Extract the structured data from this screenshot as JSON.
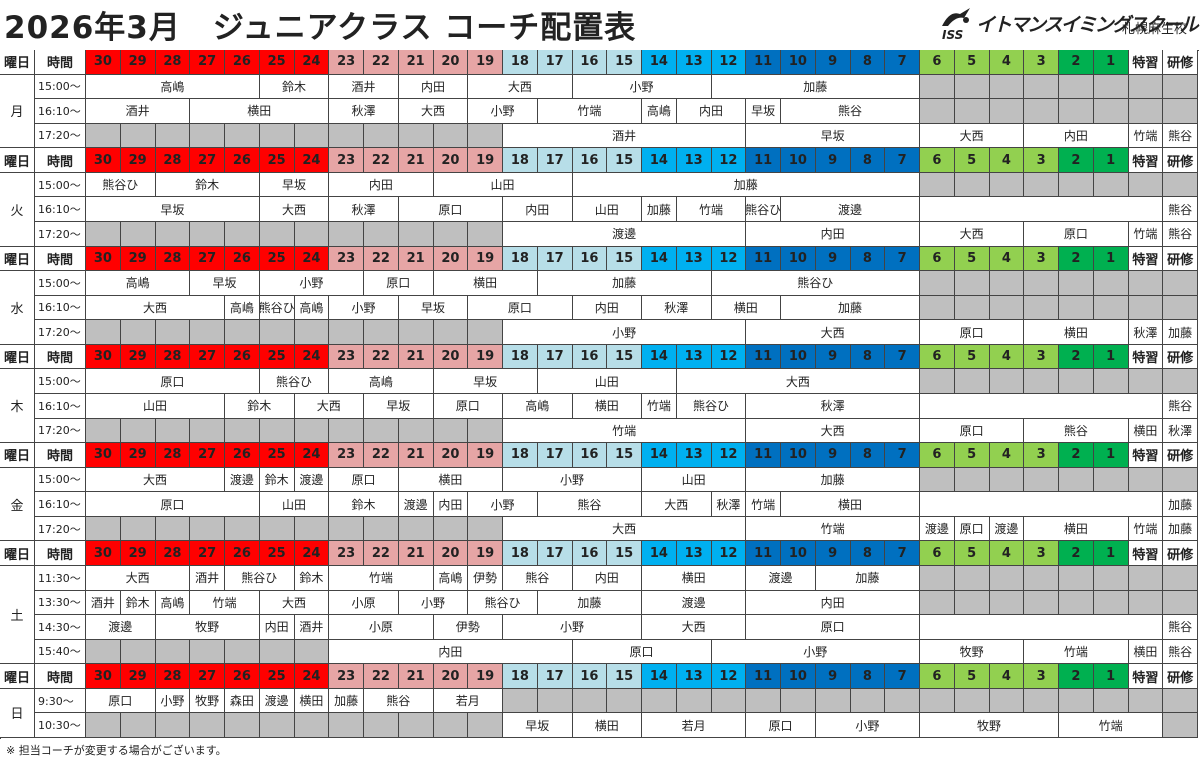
{
  "title": "2026年3月　ジュニアクラス コーチ配置表",
  "logo": {
    "mark": "ISS",
    "name": "イトマンスイミングスクール",
    "branch": "札幌麻生校"
  },
  "header": {
    "day": "曜日",
    "time": "時間",
    "levels": [
      "30",
      "29",
      "28",
      "27",
      "26",
      "25",
      "24",
      "23",
      "22",
      "21",
      "20",
      "19",
      "18",
      "17",
      "16",
      "15",
      "14",
      "13",
      "12",
      "11",
      "10",
      "9",
      "8",
      "7",
      "6",
      "5",
      "4",
      "3",
      "2",
      "1"
    ],
    "special": [
      "特習",
      "研修"
    ]
  },
  "days": [
    {
      "day": "月",
      "slots": [
        {
          "time": "15:00～",
          "coaches": [
            "高嶋",
            "鈴木",
            "酒井",
            "内田",
            "大西",
            "小野",
            "加藤"
          ]
        },
        {
          "time": "16:10～",
          "coaches": [
            "酒井",
            "横田",
            "秋澤",
            "大西",
            "小野",
            "竹端",
            "高嶋",
            "内田",
            "早坂",
            "熊谷"
          ]
        },
        {
          "time": "17:20～",
          "coaches": [
            "酒井",
            "早坂",
            "大西",
            "内田",
            "竹端",
            "熊谷"
          ]
        }
      ]
    },
    {
      "day": "火",
      "slots": [
        {
          "time": "15:00～",
          "coaches": [
            "熊谷ひ",
            "鈴木",
            "早坂",
            "内田",
            "山田",
            "加藤"
          ]
        },
        {
          "time": "16:10～",
          "coaches": [
            "早坂",
            "大西",
            "秋澤",
            "原口",
            "内田",
            "山田",
            "加藤",
            "竹端",
            "熊谷ひ",
            "渡邊",
            "熊谷"
          ]
        },
        {
          "time": "17:20～",
          "coaches": [
            "渡邊",
            "内田",
            "大西",
            "原口",
            "竹端",
            "熊谷"
          ]
        }
      ]
    },
    {
      "day": "水",
      "slots": [
        {
          "time": "15:00～",
          "coaches": [
            "高嶋",
            "早坂",
            "小野",
            "原口",
            "横田",
            "加藤",
            "熊谷ひ"
          ]
        },
        {
          "time": "16:10～",
          "coaches": [
            "大西",
            "高嶋",
            "熊谷ひ",
            "高嶋",
            "小野",
            "早坂",
            "原口",
            "内田",
            "秋澤",
            "横田",
            "加藤"
          ]
        },
        {
          "time": "17:20～",
          "coaches": [
            "小野",
            "大西",
            "原口",
            "横田",
            "秋澤",
            "加藤"
          ]
        }
      ]
    },
    {
      "day": "木",
      "slots": [
        {
          "time": "15:00～",
          "coaches": [
            "原口",
            "熊谷ひ",
            "高嶋",
            "早坂",
            "山田",
            "大西"
          ]
        },
        {
          "time": "16:10～",
          "coaches": [
            "山田",
            "鈴木",
            "大西",
            "早坂",
            "原口",
            "高嶋",
            "横田",
            "竹端",
            "熊谷ひ",
            "秋澤",
            "熊谷"
          ]
        },
        {
          "time": "17:20～",
          "coaches": [
            "竹端",
            "大西",
            "原口",
            "熊谷",
            "横田",
            "秋澤"
          ]
        }
      ]
    },
    {
      "day": "金",
      "slots": [
        {
          "time": "15:00～",
          "coaches": [
            "大西",
            "渡邊",
            "鈴木",
            "渡邊",
            "原口",
            "横田",
            "小野",
            "山田",
            "加藤"
          ]
        },
        {
          "time": "16:10～",
          "coaches": [
            "原口",
            "山田",
            "鈴木",
            "渡邊",
            "内田",
            "小野",
            "熊谷",
            "大西",
            "秋澤",
            "竹端",
            "横田",
            "加藤"
          ]
        },
        {
          "time": "17:20～",
          "coaches": [
            "大西",
            "竹端",
            "渡邊",
            "原口",
            "渡邊",
            "横田",
            "竹端",
            "加藤"
          ]
        }
      ]
    },
    {
      "day": "土",
      "slots": [
        {
          "time": "11:30～",
          "coaches": [
            "大西",
            "酒井",
            "熊谷ひ",
            "鈴木",
            "竹端",
            "高嶋",
            "伊勢",
            "熊谷",
            "内田",
            "横田",
            "渡邊",
            "加藤"
          ]
        },
        {
          "time": "13:30～",
          "coaches": [
            "酒井",
            "鈴木",
            "高嶋",
            "竹端",
            "大西",
            "小原",
            "小野",
            "熊谷ひ",
            "加藤",
            "渡邊",
            "内田"
          ]
        },
        {
          "time": "14:30～",
          "coaches": [
            "渡邊",
            "牧野",
            "内田",
            "酒井",
            "小原",
            "伊勢",
            "小野",
            "大西",
            "原口",
            "熊谷"
          ]
        },
        {
          "time": "15:40～",
          "coaches": [
            "内田",
            "原口",
            "小野",
            "牧野",
            "竹端",
            "横田",
            "熊谷"
          ]
        }
      ]
    },
    {
      "day": "日",
      "slots": [
        {
          "time": "9:30～",
          "coaches": [
            "原口",
            "小野",
            "牧野",
            "森田",
            "渡邊",
            "横田",
            "加藤",
            "熊谷",
            "若月"
          ]
        },
        {
          "time": "10:30～",
          "coaches": [
            "早坂",
            "横田",
            "若月",
            "原口",
            "小野",
            "牧野",
            "竹端"
          ]
        }
      ]
    }
  ],
  "note": "※ 担当コーチが変更する場合がございます。"
}
